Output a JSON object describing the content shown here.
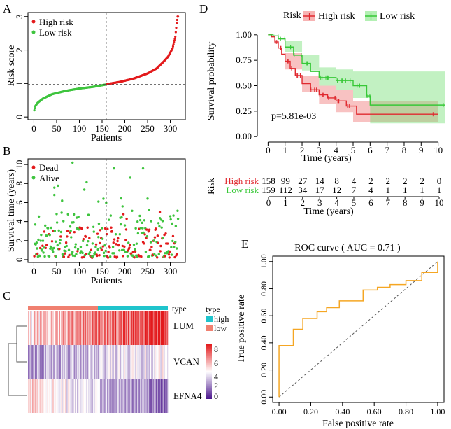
{
  "panels": {
    "A": "A",
    "B": "B",
    "C": "C",
    "D": "D",
    "E": "E"
  },
  "colors": {
    "high": "#e31a1c",
    "low": "#3ec43e",
    "km_high": "#e0292f",
    "km_low": "#37c837",
    "roc": "#f5a623",
    "type_high": "#1fc4cc",
    "type_low": "#f08070"
  },
  "chart_data": [
    {
      "id": "A",
      "type": "scatter",
      "xlabel": "Patients",
      "ylabel": "Risk score",
      "xlim": [
        0,
        320
      ],
      "ylim": [
        0,
        3.1
      ],
      "xticks": [
        "0",
        "50",
        "100",
        "150",
        "200",
        "250",
        "300"
      ],
      "yticks": [
        "0",
        "1",
        "2",
        "3"
      ],
      "cutoff_patient": 159,
      "cutoff_score": 0.97,
      "legend": [
        "High risk",
        "Low risk"
      ],
      "low_risk_curve": [
        [
          1,
          0.2
        ],
        [
          3,
          0.32
        ],
        [
          8,
          0.42
        ],
        [
          20,
          0.55
        ],
        [
          40,
          0.68
        ],
        [
          70,
          0.78
        ],
        [
          100,
          0.85
        ],
        [
          130,
          0.9
        ],
        [
          159,
          0.97
        ]
      ],
      "high_risk_curve": [
        [
          160,
          0.98
        ],
        [
          190,
          1.05
        ],
        [
          220,
          1.15
        ],
        [
          250,
          1.3
        ],
        [
          270,
          1.45
        ],
        [
          285,
          1.65
        ],
        [
          295,
          1.8
        ],
        [
          305,
          2.05
        ],
        [
          311,
          2.4
        ],
        [
          314,
          2.8
        ],
        [
          316,
          3.0
        ]
      ]
    },
    {
      "id": "B",
      "type": "scatter",
      "xlabel": "Patients",
      "ylabel": "Survival time (years)",
      "xlim": [
        0,
        320
      ],
      "ylim": [
        0,
        10.5
      ],
      "xticks": [
        "0",
        "50",
        "100",
        "150",
        "200",
        "250",
        "300"
      ],
      "yticks": [
        "0",
        "2",
        "4",
        "6",
        "8",
        "10"
      ],
      "cutoff_patient": 159,
      "legend": [
        "Dead",
        "Alive"
      ]
    },
    {
      "id": "C",
      "type": "heatmap",
      "rows": [
        "LUM",
        "VCAN",
        "EFNA4"
      ],
      "legend_title": "type",
      "legend_items": [
        "high",
        "low"
      ],
      "annotation_label": "type",
      "colorbar_ticks": [
        "8",
        "6",
        "4",
        "2",
        "0"
      ],
      "colorbar_range": [
        0,
        8
      ]
    },
    {
      "id": "D",
      "type": "line",
      "ylabel": "Survival probability",
      "xlabel": "Time (years)",
      "legend_title": "Risk",
      "legend": [
        "High risk",
        "Low risk"
      ],
      "pvalue": "p=5.81e-03",
      "xlim": [
        0,
        10
      ],
      "ylim": [
        0,
        1
      ],
      "xticks": [
        "0",
        "1",
        "2",
        "3",
        "4",
        "5",
        "6",
        "7",
        "8",
        "9",
        "10"
      ],
      "yticks": [
        "0.00",
        "0.25",
        "0.50",
        "0.75",
        "1.00"
      ],
      "series": [
        {
          "name": "High risk",
          "steps": [
            [
              0,
              1
            ],
            [
              0.2,
              0.98
            ],
            [
              0.4,
              0.93
            ],
            [
              0.6,
              0.87
            ],
            [
              0.8,
              0.81
            ],
            [
              1.0,
              0.74
            ],
            [
              1.3,
              0.67
            ],
            [
              1.6,
              0.6
            ],
            [
              2.0,
              0.52
            ],
            [
              2.5,
              0.46
            ],
            [
              3.0,
              0.41
            ],
            [
              3.5,
              0.38
            ],
            [
              4.0,
              0.35
            ],
            [
              4.6,
              0.3
            ],
            [
              5.2,
              0.22
            ],
            [
              10.0,
              0.22
            ]
          ],
          "ci": [
            [
              0,
              1,
              1
            ],
            [
              1,
              0.66,
              0.82
            ],
            [
              2,
              0.44,
              0.6
            ],
            [
              3,
              0.32,
              0.5
            ],
            [
              4,
              0.24,
              0.46
            ],
            [
              5,
              0.14,
              0.35
            ],
            [
              10,
              0.14,
              0.35
            ]
          ]
        },
        {
          "name": "Low risk",
          "steps": [
            [
              0,
              1
            ],
            [
              0.3,
              0.99
            ],
            [
              0.6,
              0.96
            ],
            [
              1.0,
              0.88
            ],
            [
              1.5,
              0.8
            ],
            [
              2.0,
              0.72
            ],
            [
              2.5,
              0.64
            ],
            [
              3.0,
              0.58
            ],
            [
              4.0,
              0.55
            ],
            [
              5.0,
              0.5
            ],
            [
              5.8,
              0.4
            ],
            [
              6.0,
              0.31
            ],
            [
              10.4,
              0.31
            ]
          ],
          "ci": [
            [
              0,
              1,
              1
            ],
            [
              1,
              0.83,
              0.94
            ],
            [
              2,
              0.65,
              0.8
            ],
            [
              3,
              0.5,
              0.68
            ],
            [
              4,
              0.46,
              0.66
            ],
            [
              5,
              0.38,
              0.64
            ],
            [
              6,
              0.13,
              0.64
            ],
            [
              10.4,
              0.13,
              0.64
            ]
          ]
        }
      ],
      "risk_table": {
        "title": "Risk",
        "rows": [
          {
            "name": "High risk",
            "values": [
              "158",
              "99",
              "27",
              "14",
              "8",
              "4",
              "2",
              "2",
              "2",
              "2",
              "0"
            ]
          },
          {
            "name": "Low risk",
            "values": [
              "159",
              "112",
              "34",
              "17",
              "12",
              "7",
              "4",
              "1",
              "1",
              "1",
              "1"
            ]
          }
        ],
        "xlabel": "Time (years)",
        "xticks": [
          "0",
          "1",
          "2",
          "3",
          "4",
          "5",
          "6",
          "7",
          "8",
          "9",
          "10"
        ]
      }
    },
    {
      "id": "E",
      "type": "line",
      "title": "ROC curve ( AUC =  0.71 )",
      "xlabel": "False positive rate",
      "ylabel": "True positive rate",
      "xlim": [
        0,
        1
      ],
      "ylim": [
        0,
        1
      ],
      "xticks": [
        "0.00",
        "0.20",
        "0.40",
        "0.60",
        "0.80",
        "1.00"
      ],
      "yticks": [
        "0.00",
        "0.20",
        "0.40",
        "0.60",
        "0.80",
        "1.00"
      ],
      "auc": 0.71,
      "points": [
        [
          0,
          0
        ],
        [
          0,
          0.38
        ],
        [
          0.09,
          0.38
        ],
        [
          0.09,
          0.5
        ],
        [
          0.15,
          0.5
        ],
        [
          0.15,
          0.58
        ],
        [
          0.24,
          0.58
        ],
        [
          0.24,
          0.63
        ],
        [
          0.3,
          0.63
        ],
        [
          0.3,
          0.66
        ],
        [
          0.38,
          0.66
        ],
        [
          0.38,
          0.71
        ],
        [
          0.53,
          0.71
        ],
        [
          0.53,
          0.79
        ],
        [
          0.62,
          0.79
        ],
        [
          0.62,
          0.81
        ],
        [
          0.7,
          0.81
        ],
        [
          0.7,
          0.83
        ],
        [
          0.8,
          0.83
        ],
        [
          0.8,
          0.86
        ],
        [
          0.9,
          0.86
        ],
        [
          0.9,
          0.92
        ],
        [
          1.0,
          0.92
        ],
        [
          1.0,
          1.0
        ]
      ]
    }
  ]
}
